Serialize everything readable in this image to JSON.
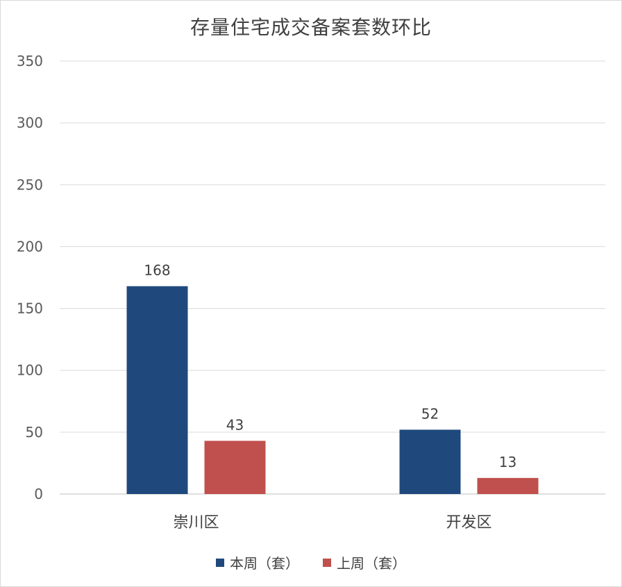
{
  "chart_data": {
    "type": "bar",
    "title": "存量住宅成交备案套数环比",
    "categories": [
      "崇川区",
      "开发区"
    ],
    "series": [
      {
        "name": "本周（套）",
        "values": [
          168,
          52
        ],
        "color": "#1f497d"
      },
      {
        "name": "上周（套）",
        "values": [
          43,
          13
        ],
        "color": "#c0504d"
      }
    ],
    "ylim": [
      0,
      350
    ],
    "yticks": [
      "0",
      "50",
      "100",
      "150",
      "200",
      "250",
      "300",
      "350"
    ],
    "grid": true,
    "legend_position": "bottom"
  }
}
